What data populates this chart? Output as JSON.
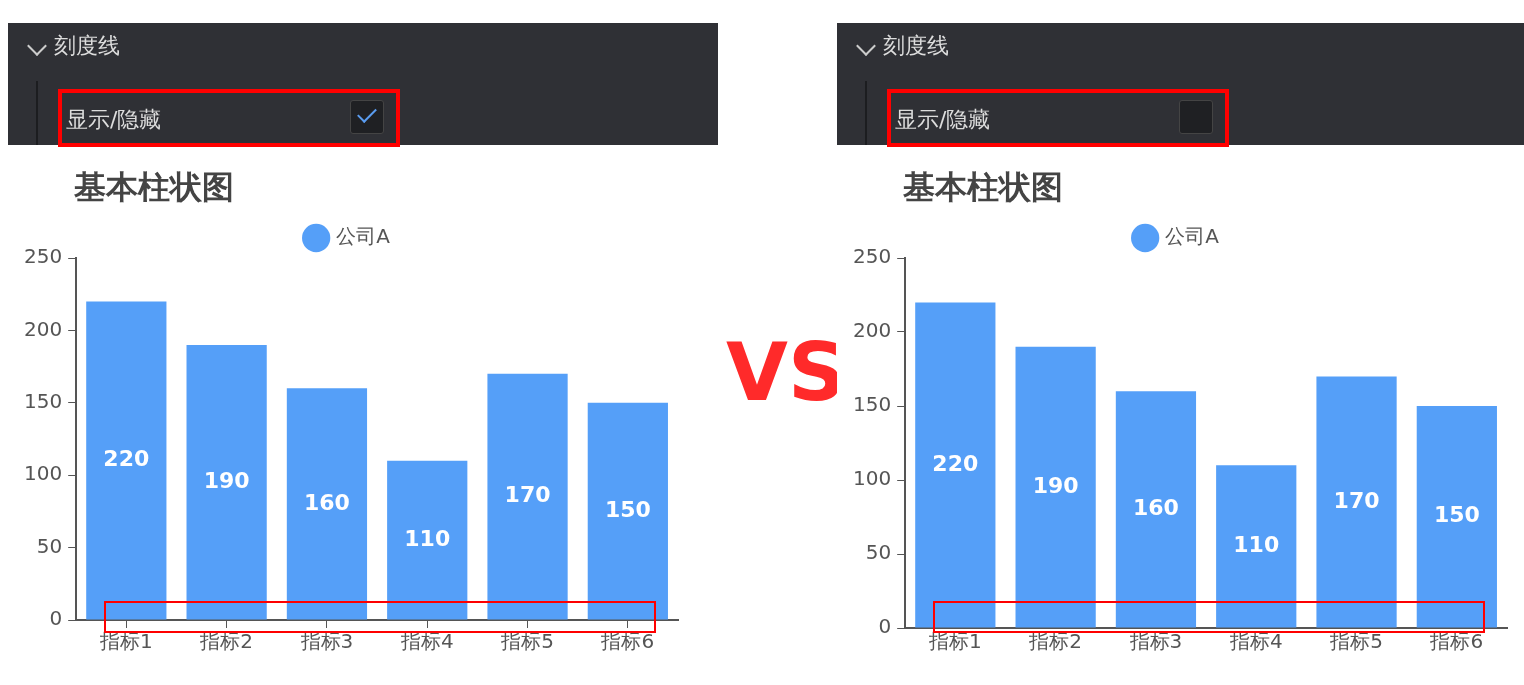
{
  "chart_data": [
    {
      "type": "bar",
      "title": "基本柱状图",
      "categories": [
        "指标1",
        "指标2",
        "指标3",
        "指标4",
        "指标5",
        "指标6"
      ],
      "series": [
        {
          "name": "公司A",
          "color": "#559ff8",
          "values": [
            220,
            190,
            160,
            110,
            170,
            150
          ]
        }
      ],
      "ylim": [
        0,
        250
      ],
      "yticks": [
        0,
        50,
        100,
        150,
        200,
        250
      ],
      "grid": false,
      "legend": "top",
      "data_labels": true,
      "annotations": [
        "刻度线",
        "显示/隐藏"
      ]
    },
    {
      "type": "other",
      "annotations": [
        "VS"
      ]
    },
    {
      "type": "bar",
      "title": "基本柱状图",
      "categories": [
        "指标1",
        "指标2",
        "指标3",
        "指标4",
        "指标5",
        "指标6"
      ],
      "series": [
        {
          "name": "公司A",
          "color": "#559ff8",
          "values": [
            220,
            190,
            160,
            110,
            170,
            150
          ]
        }
      ],
      "ylim": [
        0,
        250
      ],
      "yticks": [
        0,
        50,
        100,
        150,
        200,
        250
      ],
      "grid": false,
      "legend": "top",
      "data_labels": true,
      "annotations": [
        "刻度线",
        "显示/隐藏"
      ]
    }
  ]
}
